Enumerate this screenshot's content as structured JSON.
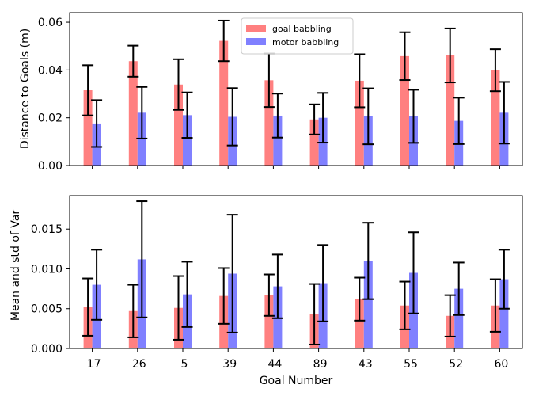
{
  "chart_data": [
    {
      "type": "bar",
      "xlabel": "",
      "ylabel": "Distance to Goals (m)",
      "ylim": [
        0,
        0.064
      ],
      "yticks": [
        "0.00",
        "0.02",
        "0.04",
        "0.06"
      ],
      "categories": [
        "17",
        "26",
        "5",
        "39",
        "44",
        "89",
        "43",
        "55",
        "52",
        "60"
      ],
      "show_category_labels": false,
      "legend": {
        "placement": "top-center",
        "entries": [
          "goal babbling",
          "motor babbling"
        ]
      },
      "series": [
        {
          "name": "goal babbling",
          "color": "#ff8080",
          "values": [
            0.0315,
            0.0437,
            0.0339,
            0.0522,
            0.0357,
            0.0193,
            0.0355,
            0.0458,
            0.0461,
            0.0399
          ],
          "errors": [
            0.0105,
            0.0065,
            0.0106,
            0.0085,
            0.0112,
            0.0063,
            0.0111,
            0.01,
            0.0113,
            0.0088
          ]
        },
        {
          "name": "motor babbling",
          "color": "#8080ff",
          "values": [
            0.0176,
            0.0221,
            0.0211,
            0.0204,
            0.0209,
            0.02,
            0.0206,
            0.0206,
            0.0187,
            0.0221
          ],
          "errors": [
            0.0098,
            0.0108,
            0.0095,
            0.012,
            0.0092,
            0.0104,
            0.0117,
            0.0111,
            0.0097,
            0.0129
          ]
        }
      ]
    },
    {
      "type": "bar",
      "xlabel": "Goal Number",
      "ylabel": "Mean and std of Var",
      "ylim": [
        0,
        0.0192
      ],
      "yticks": [
        "0.000",
        "0.005",
        "0.010",
        "0.015"
      ],
      "categories": [
        "17",
        "26",
        "5",
        "39",
        "44",
        "89",
        "43",
        "55",
        "52",
        "60"
      ],
      "show_category_labels": true,
      "series": [
        {
          "name": "goal babbling",
          "color": "#ff8080",
          "values": [
            0.0052,
            0.0047,
            0.0051,
            0.0066,
            0.0067,
            0.0043,
            0.0062,
            0.0054,
            0.0041,
            0.0054
          ],
          "errors": [
            0.0036,
            0.0033,
            0.004,
            0.0035,
            0.0026,
            0.0038,
            0.0027,
            0.003,
            0.0026,
            0.0033
          ]
        },
        {
          "name": "motor babbling",
          "color": "#8080ff",
          "values": [
            0.008,
            0.0112,
            0.0068,
            0.0094,
            0.0078,
            0.0082,
            0.011,
            0.0095,
            0.0075,
            0.0087
          ],
          "errors": [
            0.0044,
            0.0073,
            0.0041,
            0.0074,
            0.004,
            0.0048,
            0.0048,
            0.0051,
            0.0033,
            0.0037
          ]
        }
      ]
    }
  ]
}
